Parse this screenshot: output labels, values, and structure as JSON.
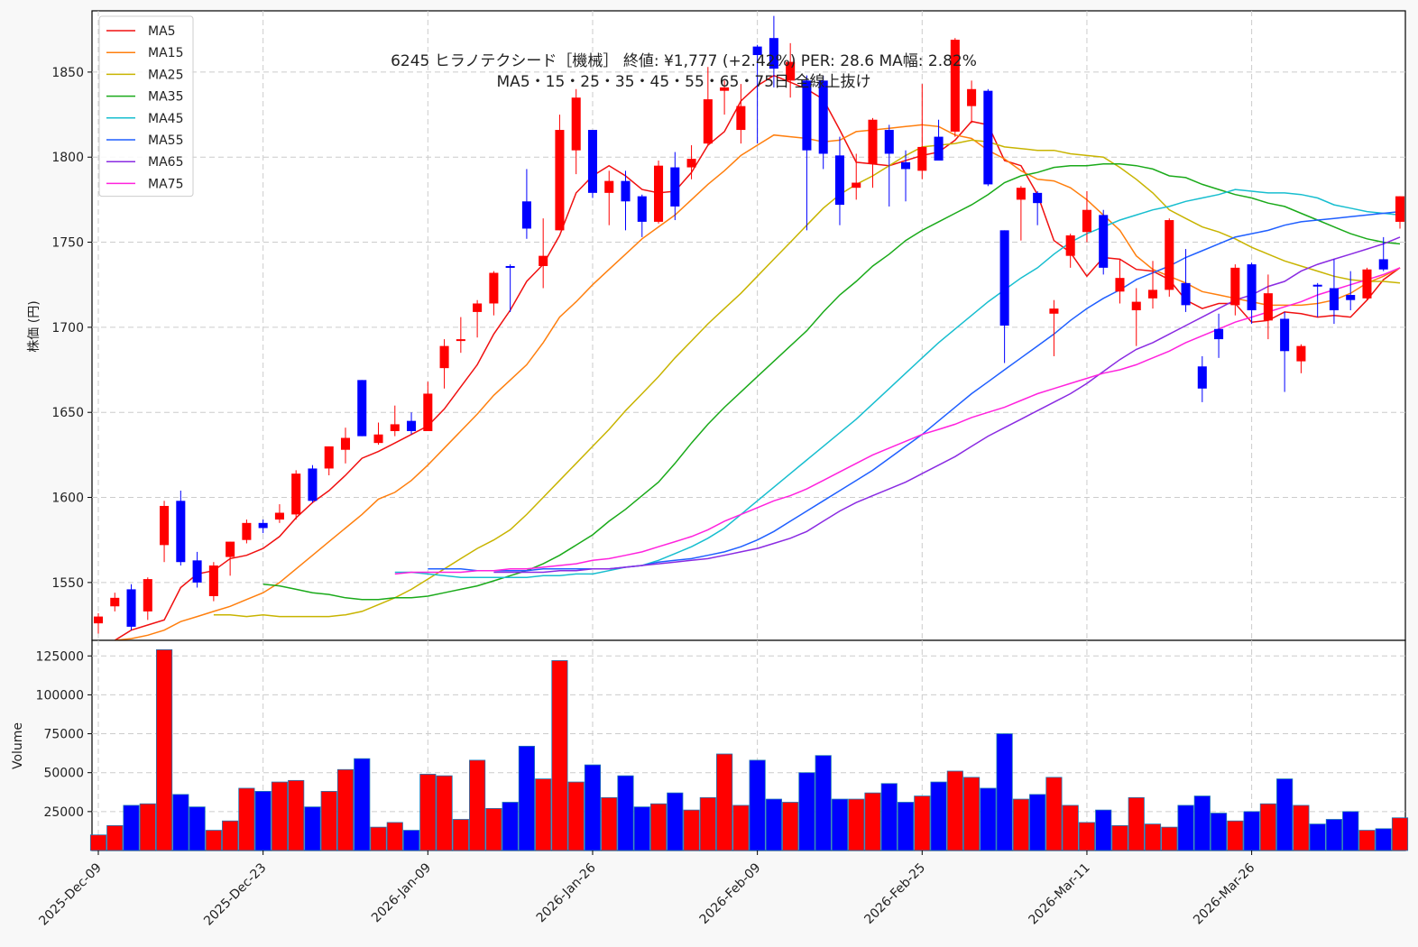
{
  "chart_data": {
    "type": "candlestick",
    "title": "6245  ヒラノテクシード［機械］ 終値: ¥1,777 (+2.42%)  PER: 28.6  MA幅: 2.82%",
    "subtitle": "MA5・15・25・35・45・55・65・75日 全線上抜け",
    "ylabel": "株価 (円)",
    "volume_label": "Volume",
    "price_ylim": [
      1516,
      1886
    ],
    "price_yticks": [
      1550,
      1600,
      1650,
      1700,
      1750,
      1800,
      1850
    ],
    "volume_ylim": [
      0,
      135000
    ],
    "volume_yticks": [
      25000,
      50000,
      75000,
      100000,
      125000
    ],
    "grid": true,
    "legend_position": "top-left",
    "x_tick_labels": [
      {
        "index": 0,
        "label": "2025-Dec-09"
      },
      {
        "index": 10,
        "label": "2025-Dec-23"
      },
      {
        "index": 20,
        "label": "2026-Jan-09"
      },
      {
        "index": 30,
        "label": "2026-Jan-26"
      },
      {
        "index": 40,
        "label": "2026-Feb-09"
      },
      {
        "index": 50,
        "label": "2026-Feb-25"
      },
      {
        "index": 60,
        "label": "2026-Mar-11"
      },
      {
        "index": 70,
        "label": "2026-Mar-26"
      }
    ],
    "candles": [
      {
        "o": 1526,
        "h": 1532,
        "l": 1520,
        "c": 1530
      },
      {
        "o": 1536,
        "h": 1544,
        "l": 1533,
        "c": 1541
      },
      {
        "o": 1546,
        "h": 1549,
        "l": 1522,
        "c": 1524
      },
      {
        "o": 1533,
        "h": 1553,
        "l": 1528,
        "c": 1552
      },
      {
        "o": 1572,
        "h": 1598,
        "l": 1562,
        "c": 1595
      },
      {
        "o": 1598,
        "h": 1604,
        "l": 1560,
        "c": 1562
      },
      {
        "o": 1563,
        "h": 1568,
        "l": 1547,
        "c": 1550
      },
      {
        "o": 1542,
        "h": 1562,
        "l": 1539,
        "c": 1560
      },
      {
        "o": 1565,
        "h": 1574,
        "l": 1554,
        "c": 1574
      },
      {
        "o": 1575,
        "h": 1587,
        "l": 1573,
        "c": 1585
      },
      {
        "o": 1585,
        "h": 1587,
        "l": 1579,
        "c": 1582
      },
      {
        "o": 1587,
        "h": 1596,
        "l": 1585,
        "c": 1591
      },
      {
        "o": 1590,
        "h": 1616,
        "l": 1587,
        "c": 1614
      },
      {
        "o": 1617,
        "h": 1619,
        "l": 1597,
        "c": 1598
      },
      {
        "o": 1617,
        "h": 1630,
        "l": 1613,
        "c": 1630
      },
      {
        "o": 1628,
        "h": 1641,
        "l": 1620,
        "c": 1635
      },
      {
        "o": 1669,
        "h": 1669,
        "l": 1636,
        "c": 1636
      },
      {
        "o": 1632,
        "h": 1644,
        "l": 1631,
        "c": 1637
      },
      {
        "o": 1639,
        "h": 1654,
        "l": 1636,
        "c": 1643
      },
      {
        "o": 1645,
        "h": 1650,
        "l": 1637,
        "c": 1639
      },
      {
        "o": 1639,
        "h": 1668,
        "l": 1639,
        "c": 1661
      },
      {
        "o": 1676,
        "h": 1693,
        "l": 1664,
        "c": 1689
      },
      {
        "o": 1693,
        "h": 1706,
        "l": 1685,
        "c": 1693
      },
      {
        "o": 1709,
        "h": 1716,
        "l": 1694,
        "c": 1714
      },
      {
        "o": 1714,
        "h": 1733,
        "l": 1707,
        "c": 1732
      },
      {
        "o": 1736,
        "h": 1737,
        "l": 1709,
        "c": 1735
      },
      {
        "o": 1774,
        "h": 1793,
        "l": 1752,
        "c": 1758
      },
      {
        "o": 1736,
        "h": 1764,
        "l": 1723,
        "c": 1742
      },
      {
        "o": 1757,
        "h": 1825,
        "l": 1757,
        "c": 1816
      },
      {
        "o": 1804,
        "h": 1840,
        "l": 1790,
        "c": 1835
      },
      {
        "o": 1816,
        "h": 1816,
        "l": 1776,
        "c": 1779
      },
      {
        "o": 1779,
        "h": 1792,
        "l": 1760,
        "c": 1786
      },
      {
        "o": 1786,
        "h": 1792,
        "l": 1757,
        "c": 1774
      },
      {
        "o": 1777,
        "h": 1778,
        "l": 1753,
        "c": 1762
      },
      {
        "o": 1762,
        "h": 1798,
        "l": 1761,
        "c": 1795
      },
      {
        "o": 1794,
        "h": 1803,
        "l": 1763,
        "c": 1771
      },
      {
        "o": 1794,
        "h": 1807,
        "l": 1787,
        "c": 1799
      },
      {
        "o": 1808,
        "h": 1853,
        "l": 1807,
        "c": 1834
      },
      {
        "o": 1839,
        "h": 1845,
        "l": 1825,
        "c": 1841
      },
      {
        "o": 1816,
        "h": 1843,
        "l": 1808,
        "c": 1830
      },
      {
        "o": 1865,
        "h": 1866,
        "l": 1808,
        "c": 1860
      },
      {
        "o": 1870,
        "h": 1883,
        "l": 1841,
        "c": 1852
      },
      {
        "o": 1845,
        "h": 1867,
        "l": 1835,
        "c": 1856
      },
      {
        "o": 1845,
        "h": 1848,
        "l": 1757,
        "c": 1804
      },
      {
        "o": 1845,
        "h": 1848,
        "l": 1793,
        "c": 1802
      },
      {
        "o": 1801,
        "h": 1812,
        "l": 1760,
        "c": 1772
      },
      {
        "o": 1782,
        "h": 1802,
        "l": 1775,
        "c": 1785
      },
      {
        "o": 1796,
        "h": 1823,
        "l": 1782,
        "c": 1822
      },
      {
        "o": 1816,
        "h": 1819,
        "l": 1771,
        "c": 1802
      },
      {
        "o": 1797,
        "h": 1804,
        "l": 1774,
        "c": 1793
      },
      {
        "o": 1792,
        "h": 1843,
        "l": 1787,
        "c": 1806
      },
      {
        "o": 1812,
        "h": 1822,
        "l": 1798,
        "c": 1798
      },
      {
        "o": 1815,
        "h": 1870,
        "l": 1812,
        "c": 1869
      },
      {
        "o": 1830,
        "h": 1845,
        "l": 1820,
        "c": 1840
      },
      {
        "o": 1839,
        "h": 1840,
        "l": 1783,
        "c": 1784
      },
      {
        "o": 1757,
        "h": 1757,
        "l": 1679,
        "c": 1701
      },
      {
        "o": 1775,
        "h": 1783,
        "l": 1751,
        "c": 1782
      },
      {
        "o": 1779,
        "h": 1780,
        "l": 1760,
        "c": 1773
      },
      {
        "o": 1708,
        "h": 1716,
        "l": 1683,
        "c": 1711
      },
      {
        "o": 1742,
        "h": 1755,
        "l": 1735,
        "c": 1754
      },
      {
        "o": 1756,
        "h": 1780,
        "l": 1750,
        "c": 1769
      },
      {
        "o": 1766,
        "h": 1769,
        "l": 1731,
        "c": 1735
      },
      {
        "o": 1721,
        "h": 1740,
        "l": 1714,
        "c": 1729
      },
      {
        "o": 1710,
        "h": 1723,
        "l": 1689,
        "c": 1715
      },
      {
        "o": 1717,
        "h": 1739,
        "l": 1711,
        "c": 1722
      },
      {
        "o": 1722,
        "h": 1764,
        "l": 1718,
        "c": 1763
      },
      {
        "o": 1726,
        "h": 1746,
        "l": 1709,
        "c": 1713
      },
      {
        "o": 1677,
        "h": 1683,
        "l": 1656,
        "c": 1664
      },
      {
        "o": 1699,
        "h": 1708,
        "l": 1682,
        "c": 1693
      },
      {
        "o": 1713,
        "h": 1737,
        "l": 1707,
        "c": 1735
      },
      {
        "o": 1737,
        "h": 1738,
        "l": 1702,
        "c": 1710
      },
      {
        "o": 1704,
        "h": 1731,
        "l": 1693,
        "c": 1720
      },
      {
        "o": 1705,
        "h": 1709,
        "l": 1662,
        "c": 1686
      },
      {
        "o": 1680,
        "h": 1690,
        "l": 1673,
        "c": 1689
      },
      {
        "o": 1725,
        "h": 1726,
        "l": 1706,
        "c": 1724
      },
      {
        "o": 1723,
        "h": 1740,
        "l": 1702,
        "c": 1710
      },
      {
        "o": 1719,
        "h": 1733,
        "l": 1710,
        "c": 1716
      },
      {
        "o": 1717,
        "h": 1735,
        "l": 1716,
        "c": 1734
      },
      {
        "o": 1740,
        "h": 1753,
        "l": 1733,
        "c": 1734
      },
      {
        "o": 1762,
        "h": 1777,
        "l": 1758,
        "c": 1777
      }
    ],
    "volume": [
      10000,
      16000,
      29000,
      30000,
      129000,
      36000,
      28000,
      13000,
      19000,
      40000,
      38000,
      44000,
      45000,
      28000,
      38000,
      52000,
      59000,
      15000,
      18000,
      13000,
      49000,
      48000,
      20000,
      58000,
      27000,
      31000,
      67000,
      46000,
      122000,
      44000,
      55000,
      34000,
      48000,
      28000,
      30000,
      37000,
      26000,
      34000,
      62000,
      29000,
      58000,
      33000,
      31000,
      50000,
      61000,
      33000,
      33000,
      37000,
      43000,
      31000,
      35000,
      44000,
      51000,
      47000,
      40000,
      75000,
      33000,
      36000,
      47000,
      29000,
      18000,
      26000,
      16000,
      34000,
      17000,
      15000,
      29000,
      35000,
      24000,
      19000,
      25000,
      30000,
      46000,
      29000,
      17000,
      20000,
      25000,
      13000,
      14000,
      21000
    ],
    "series": [
      {
        "name": "MA5",
        "color": "#f01010",
        "values": [
          1516,
          1522,
          1525,
          1528,
          1547,
          1555,
          1557,
          1564,
          1566,
          1570,
          1577,
          1588,
          1597,
          1604,
          1613,
          1623,
          1627,
          1632,
          1637,
          1642,
          1652,
          1665,
          1678,
          1696,
          1710,
          1727,
          1737,
          1754,
          1779,
          1789,
          1795,
          1789,
          1781,
          1779,
          1780,
          1791,
          1807,
          1815,
          1833,
          1842,
          1848,
          1844,
          1840,
          1834,
          1816,
          1797,
          1796,
          1795,
          1798,
          1801,
          1803,
          1810,
          1821,
          1819,
          1798,
          1795,
          1778,
          1751,
          1744,
          1730,
          1741,
          1740,
          1734,
          1733,
          1728,
          1716,
          1711,
          1714,
          1714,
          1703,
          1704,
          1709,
          1708,
          1706,
          1707,
          1706,
          1716,
          1728,
          1735
        ]
      },
      {
        "name": "MA15",
        "color": "#ff7f0e",
        "values": [
          1516,
          1517,
          1519,
          1522,
          1527,
          1530,
          1533,
          1536,
          1540,
          1544,
          1550,
          1558,
          1566,
          1574,
          1582,
          1590,
          1599,
          1603,
          1610,
          1619,
          1629,
          1639,
          1649,
          1660,
          1669,
          1678,
          1691,
          1706,
          1715,
          1725,
          1734,
          1743,
          1752,
          1759,
          1766,
          1775,
          1784,
          1792,
          1801,
          1807,
          1813,
          1812,
          1811,
          1809,
          1810,
          1815,
          1816,
          1817,
          1818,
          1819,
          1818,
          1813,
          1811,
          1804,
          1799,
          1792,
          1787,
          1786,
          1782,
          1775,
          1766,
          1757,
          1742,
          1734,
          1730,
          1726,
          1721,
          1719,
          1717,
          1715,
          1713,
          1713,
          1713,
          1714,
          1716,
          1720,
          1726,
          1730,
          1735
        ]
      },
      {
        "name": "MA25",
        "color": "#c8b400",
        "values": [
          1531,
          1531,
          1530,
          1531,
          1530,
          1530,
          1530,
          1530,
          1531,
          1533,
          1537,
          1541,
          1546,
          1552,
          1558,
          1564,
          1570,
          1575,
          1581,
          1590,
          1600,
          1610,
          1620,
          1630,
          1640,
          1651,
          1661,
          1671,
          1682,
          1692,
          1702,
          1711,
          1720,
          1730,
          1740,
          1750,
          1760,
          1770,
          1778,
          1784,
          1789,
          1795,
          1801,
          1806,
          1807,
          1808,
          1810,
          1809,
          1806,
          1805,
          1804,
          1804,
          1802,
          1801,
          1800,
          1794,
          1787,
          1779,
          1769,
          1764,
          1759,
          1756,
          1752,
          1747,
          1743,
          1739,
          1736,
          1733,
          1730,
          1728,
          1727,
          1727,
          1726
        ]
      },
      {
        "name": "MA35",
        "color": "#1aaa1a",
        "values": [
          1549,
          1548,
          1546,
          1544,
          1543,
          1541,
          1540,
          1540,
          1541,
          1541,
          1542,
          1544,
          1546,
          1548,
          1551,
          1554,
          1557,
          1561,
          1566,
          1572,
          1578,
          1586,
          1593,
          1601,
          1609,
          1620,
          1632,
          1643,
          1653,
          1662,
          1671,
          1680,
          1689,
          1698,
          1709,
          1719,
          1727,
          1736,
          1743,
          1751,
          1757,
          1762,
          1767,
          1772,
          1778,
          1785,
          1789,
          1791,
          1794,
          1795,
          1795,
          1796,
          1796,
          1795,
          1793,
          1789,
          1788,
          1784,
          1781,
          1778,
          1776,
          1773,
          1771,
          1767,
          1763,
          1759,
          1755,
          1752,
          1750,
          1749
        ]
      },
      {
        "name": "MA45",
        "color": "#17becf",
        "values": [
          1556,
          1556,
          1555,
          1554,
          1553,
          1553,
          1553,
          1553,
          1553,
          1554,
          1554,
          1555,
          1555,
          1557,
          1559,
          1560,
          1563,
          1567,
          1571,
          1576,
          1582,
          1590,
          1598,
          1606,
          1614,
          1622,
          1630,
          1638,
          1646,
          1655,
          1664,
          1673,
          1682,
          1691,
          1699,
          1707,
          1715,
          1722,
          1729,
          1735,
          1743,
          1750,
          1755,
          1759,
          1763,
          1766,
          1769,
          1771,
          1774,
          1776,
          1778,
          1781,
          1780,
          1779,
          1779,
          1778,
          1776,
          1772,
          1770,
          1768,
          1767,
          1766
        ]
      },
      {
        "name": "MA55",
        "color": "#1f5fff",
        "values": [
          1558,
          1558,
          1558,
          1557,
          1557,
          1557,
          1557,
          1558,
          1558,
          1558,
          1558,
          1558,
          1559,
          1560,
          1562,
          1563,
          1564,
          1566,
          1568,
          1571,
          1575,
          1580,
          1586,
          1592,
          1598,
          1604,
          1610,
          1616,
          1623,
          1630,
          1637,
          1645,
          1653,
          1661,
          1668,
          1675,
          1682,
          1689,
          1696,
          1704,
          1711,
          1717,
          1722,
          1728,
          1732,
          1736,
          1741,
          1745,
          1749,
          1753,
          1755,
          1757,
          1760,
          1762,
          1763,
          1764,
          1765,
          1766,
          1767,
          1768
        ]
      },
      {
        "name": "MA65",
        "color": "#8a2be2",
        "values": [
          1556,
          1556,
          1556,
          1556,
          1557,
          1557,
          1558,
          1558,
          1559,
          1560,
          1561,
          1562,
          1563,
          1564,
          1566,
          1568,
          1570,
          1573,
          1576,
          1580,
          1586,
          1592,
          1597,
          1601,
          1605,
          1609,
          1614,
          1619,
          1624,
          1630,
          1636,
          1641,
          1646,
          1651,
          1656,
          1661,
          1667,
          1674,
          1681,
          1687,
          1691,
          1696,
          1701,
          1706,
          1711,
          1716,
          1719,
          1724,
          1727,
          1733,
          1737,
          1740,
          1743,
          1746,
          1749,
          1753
        ]
      },
      {
        "name": "MA75",
        "color": "#ff22dd",
        "values": [
          1555,
          1556,
          1556,
          1556,
          1556,
          1557,
          1557,
          1558,
          1558,
          1559,
          1560,
          1561,
          1563,
          1564,
          1566,
          1568,
          1571,
          1574,
          1577,
          1581,
          1586,
          1590,
          1594,
          1598,
          1601,
          1605,
          1610,
          1615,
          1620,
          1625,
          1629,
          1633,
          1637,
          1640,
          1643,
          1647,
          1650,
          1653,
          1657,
          1661,
          1664,
          1667,
          1670,
          1673,
          1675,
          1678,
          1682,
          1686,
          1691,
          1695,
          1699,
          1703,
          1706,
          1709,
          1712,
          1715,
          1719,
          1722,
          1725,
          1728,
          1731,
          1735
        ]
      }
    ]
  }
}
